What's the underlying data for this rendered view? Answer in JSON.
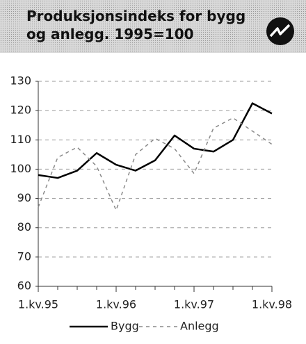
{
  "chart_data": {
    "type": "line",
    "title": "Produksjonsindeks for bygg og anlegg. 1995=100",
    "categories": [
      "1.kv.95",
      null,
      null,
      null,
      "1.kv.96",
      null,
      null,
      null,
      "1.kv.97",
      null,
      null,
      null,
      "1.kv.98"
    ],
    "series": [
      {
        "name": "Bygg",
        "color": "#000000",
        "line_style": "solid",
        "values": [
          98,
          97,
          99.5,
          105.5,
          101.5,
          99.5,
          103,
          111.5,
          107,
          106,
          110,
          122.5,
          119
        ]
      },
      {
        "name": "Anlegg",
        "color": "#8a8a8a",
        "line_style": "dashed",
        "values": [
          87,
          104,
          107.5,
          101,
          86,
          105,
          110.5,
          107,
          98.5,
          114,
          117.5,
          113,
          108.5
        ]
      }
    ],
    "ylim": [
      60,
      130
    ],
    "yticks": [
      60,
      70,
      80,
      90,
      100,
      110,
      120,
      130
    ],
    "grid": true,
    "legend": "bottom"
  }
}
